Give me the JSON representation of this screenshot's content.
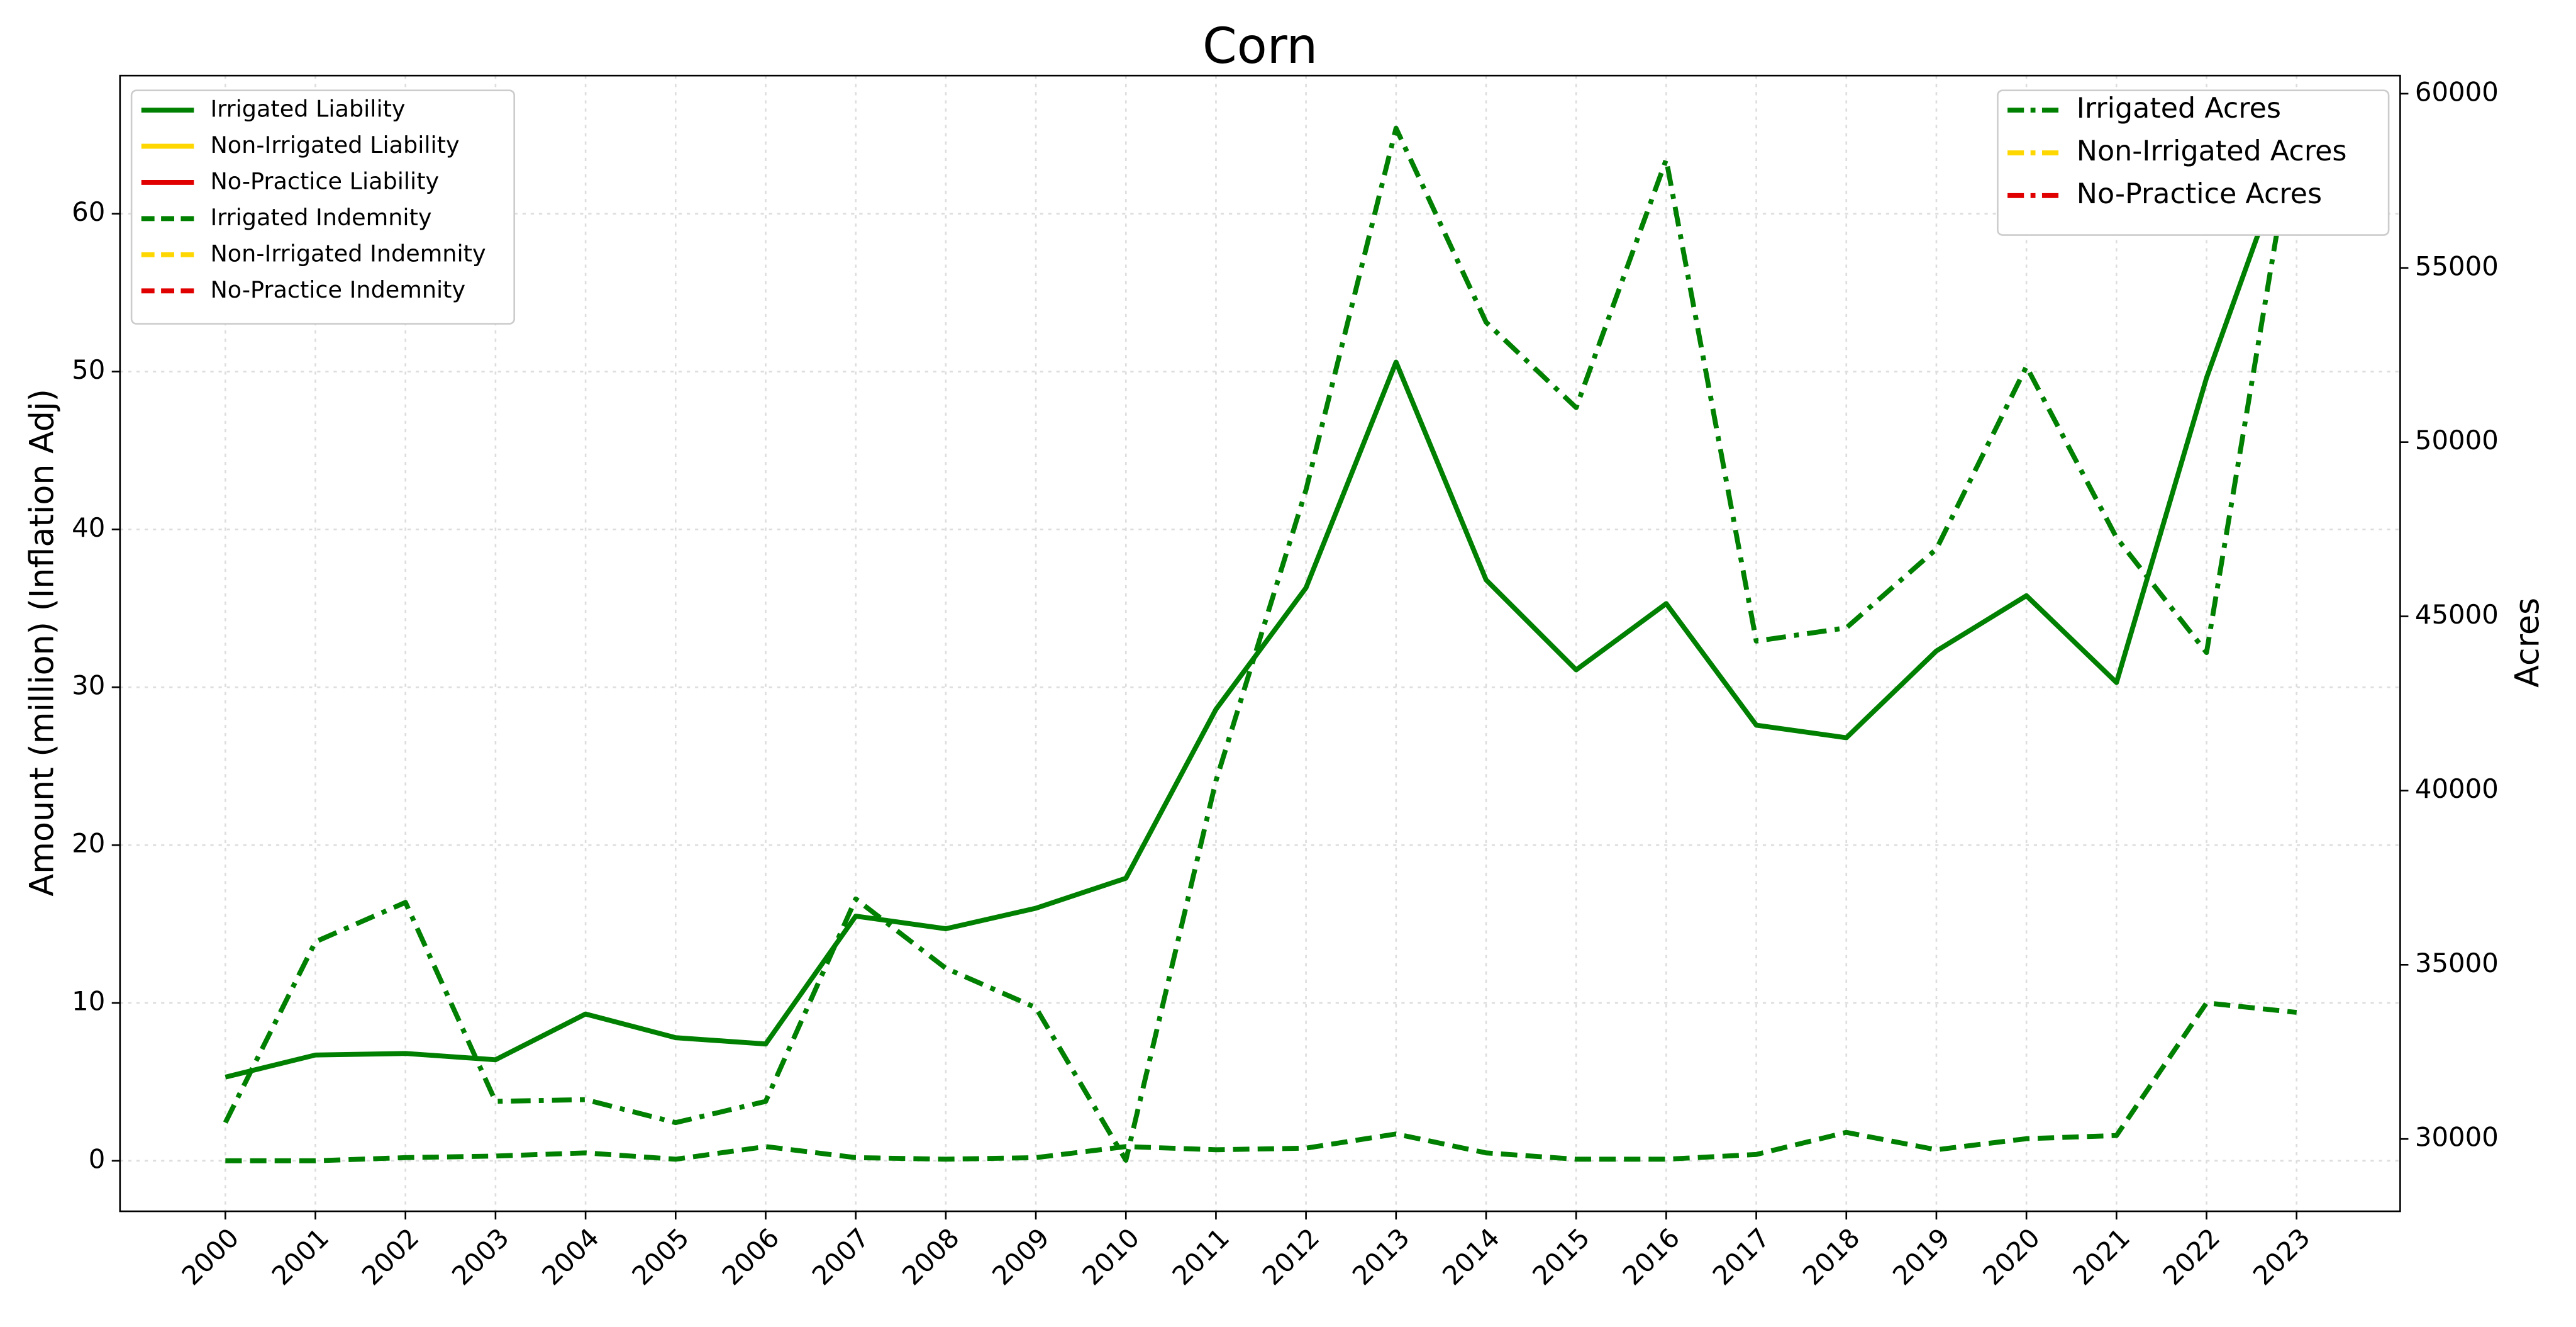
{
  "chart_data": {
    "type": "line",
    "title": "Corn",
    "ylabel": "Amount (million) (Inflation Adj)",
    "y2label": "Acres",
    "x": [
      2000,
      2001,
      2002,
      2003,
      2004,
      2005,
      2006,
      2007,
      2008,
      2009,
      2010,
      2011,
      2012,
      2013,
      2014,
      2015,
      2016,
      2017,
      2018,
      2019,
      2020,
      2021,
      2022,
      2023
    ],
    "xlim": [
      1998.83,
      2024.15
    ],
    "xticks": [
      2000,
      2001,
      2002,
      2003,
      2004,
      2005,
      2006,
      2007,
      2008,
      2009,
      2010,
      2011,
      2012,
      2013,
      2014,
      2015,
      2016,
      2017,
      2018,
      2019,
      2020,
      2021,
      2022,
      2023
    ],
    "ylim": [
      -3.2,
      68.75
    ],
    "yticks": [
      0,
      10,
      20,
      30,
      40,
      50,
      60
    ],
    "y2lim": [
      27925,
      60519
    ],
    "y2ticks": [
      30000,
      35000,
      40000,
      45000,
      50000,
      55000,
      60000
    ],
    "grid": true,
    "legend": "upper left",
    "legend2": "upper right",
    "series": [
      {
        "name": "Irrigated Liability",
        "color": "#008000",
        "linestyle": "solid",
        "axis": "y",
        "values": [
          5.3,
          6.7,
          6.8,
          6.4,
          9.3,
          7.8,
          7.4,
          15.5,
          14.7,
          16.0,
          17.9,
          28.6,
          36.3,
          50.6,
          36.8,
          31.1,
          35.3,
          27.6,
          26.8,
          32.3,
          35.8,
          30.3,
          49.6,
          65.5
        ]
      },
      {
        "name": "Non-Irrigated Liability",
        "color": "#ffd700",
        "linestyle": "solid",
        "axis": "y",
        "values": [
          null,
          null,
          null,
          null,
          null,
          null,
          null,
          null,
          null,
          null,
          null,
          null,
          null,
          null,
          null,
          null,
          null,
          null,
          null,
          null,
          null,
          null,
          null,
          null
        ]
      },
      {
        "name": "No-Practice Liability",
        "color": "#e00000",
        "linestyle": "solid",
        "axis": "y",
        "values": [
          null,
          null,
          null,
          null,
          null,
          null,
          null,
          null,
          null,
          null,
          null,
          null,
          null,
          null,
          null,
          null,
          null,
          null,
          null,
          null,
          null,
          null,
          null,
          null
        ]
      },
      {
        "name": "Irrigated Indemnity",
        "color": "#008000",
        "linestyle": "dashed",
        "axis": "y",
        "values": [
          0,
          0,
          0.2,
          0.3,
          0.5,
          0.1,
          0.9,
          0.2,
          0.1,
          0.2,
          0.9,
          0.7,
          0.8,
          1.7,
          0.5,
          0.1,
          0.1,
          0.4,
          1.8,
          0.7,
          1.4,
          1.6,
          10.0,
          9.4
        ]
      },
      {
        "name": "Non-Irrigated Indemnity",
        "color": "#ffd700",
        "linestyle": "dashed",
        "axis": "y",
        "values": [
          null,
          null,
          null,
          null,
          null,
          null,
          null,
          null,
          null,
          null,
          null,
          null,
          null,
          null,
          null,
          null,
          null,
          null,
          null,
          null,
          null,
          null,
          null,
          null
        ]
      },
      {
        "name": "No-Practice Indemnity",
        "color": "#e00000",
        "linestyle": "dashed",
        "axis": "y",
        "values": [
          null,
          null,
          null,
          null,
          null,
          null,
          null,
          null,
          null,
          null,
          null,
          null,
          null,
          null,
          null,
          null,
          null,
          null,
          null,
          null,
          null,
          null,
          null,
          null
        ]
      },
      {
        "name": "Irrigated Acres",
        "color": "#008000",
        "linestyle": "dashdot",
        "axis": "y2",
        "values": [
          30470,
          35660,
          36790,
          31080,
          31130,
          30470,
          31080,
          36890,
          34900,
          33770,
          29390,
          40280,
          48630,
          59010,
          53440,
          50990,
          58110,
          44290,
          44670,
          46930,
          52170,
          47260,
          43960,
          59390
        ]
      },
      {
        "name": "Non-Irrigated Acres",
        "color": "#ffd700",
        "linestyle": "dashdot",
        "axis": "y2",
        "values": [
          null,
          null,
          null,
          null,
          null,
          null,
          null,
          null,
          null,
          null,
          null,
          null,
          null,
          null,
          null,
          null,
          null,
          null,
          null,
          null,
          null,
          null,
          null,
          null
        ]
      },
      {
        "name": "No-Practice Acres",
        "color": "#e00000",
        "linestyle": "dashdot",
        "axis": "y2",
        "values": [
          null,
          null,
          null,
          null,
          null,
          null,
          null,
          null,
          null,
          null,
          null,
          null,
          null,
          null,
          null,
          null,
          null,
          null,
          null,
          null,
          null,
          null,
          null,
          null
        ]
      }
    ]
  }
}
